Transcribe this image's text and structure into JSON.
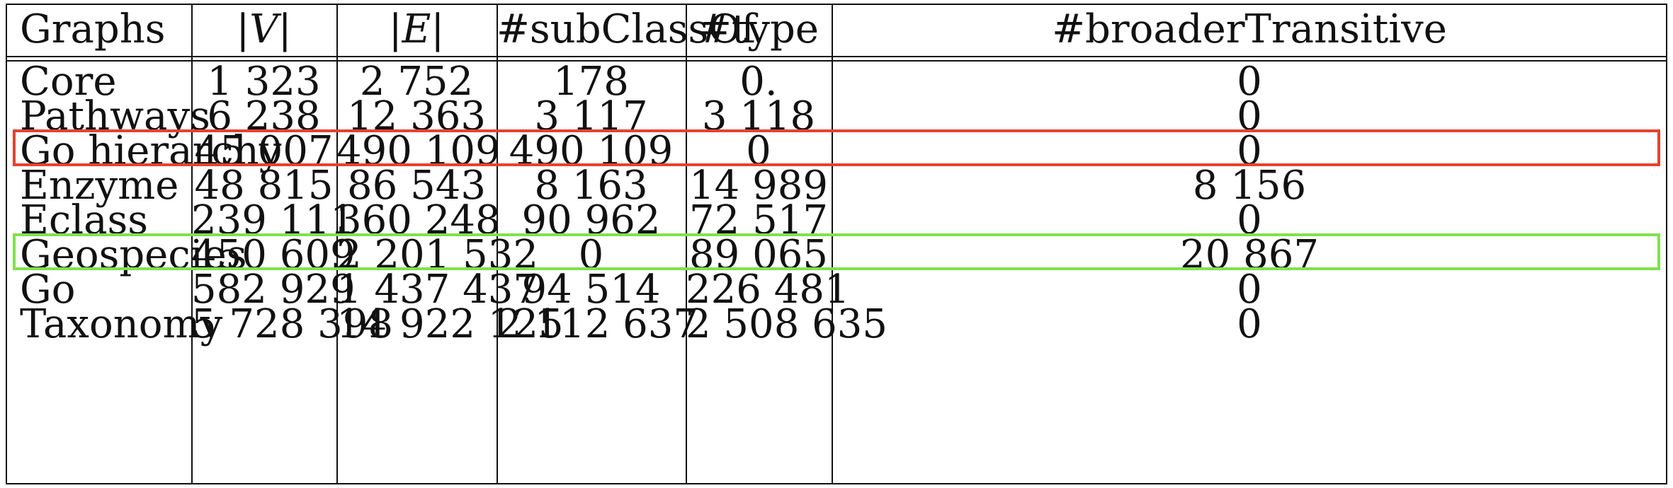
{
  "table": {
    "headers": [
      "Graphs",
      "|V|",
      "|E|",
      "#subClassOf",
      "#type",
      "#broaderTransitive"
    ],
    "rows": [
      [
        "Core",
        "1 323",
        "2 752",
        "178",
        "0.",
        "0"
      ],
      [
        "Pathways",
        "6 238",
        "12 363",
        "3 117",
        "3 118",
        "0"
      ],
      [
        "Go hierarchy",
        "45 007",
        "490 109",
        "490 109",
        "0",
        "0"
      ],
      [
        "Enzyme",
        "48 815",
        "86 543",
        "8 163",
        "14 989",
        "8 156"
      ],
      [
        "Eclass",
        "239 111",
        "360 248",
        "90 962",
        "72 517",
        "0"
      ],
      [
        "Geospecies",
        "450 609",
        "2 201 532",
        "0",
        "89 065",
        "20 867"
      ],
      [
        "Go",
        "582 929",
        "1 437 437",
        "94 514",
        "226 481",
        "0"
      ],
      [
        "Taxonomy",
        "5 728 398",
        "14 922 125",
        "2 112 637",
        "2 508 635",
        "0"
      ]
    ]
  },
  "highlights": [
    {
      "row": "Go hierarchy",
      "color": "#e8412c"
    },
    {
      "row": "Geospecies",
      "color": "#7de34a"
    }
  ]
}
